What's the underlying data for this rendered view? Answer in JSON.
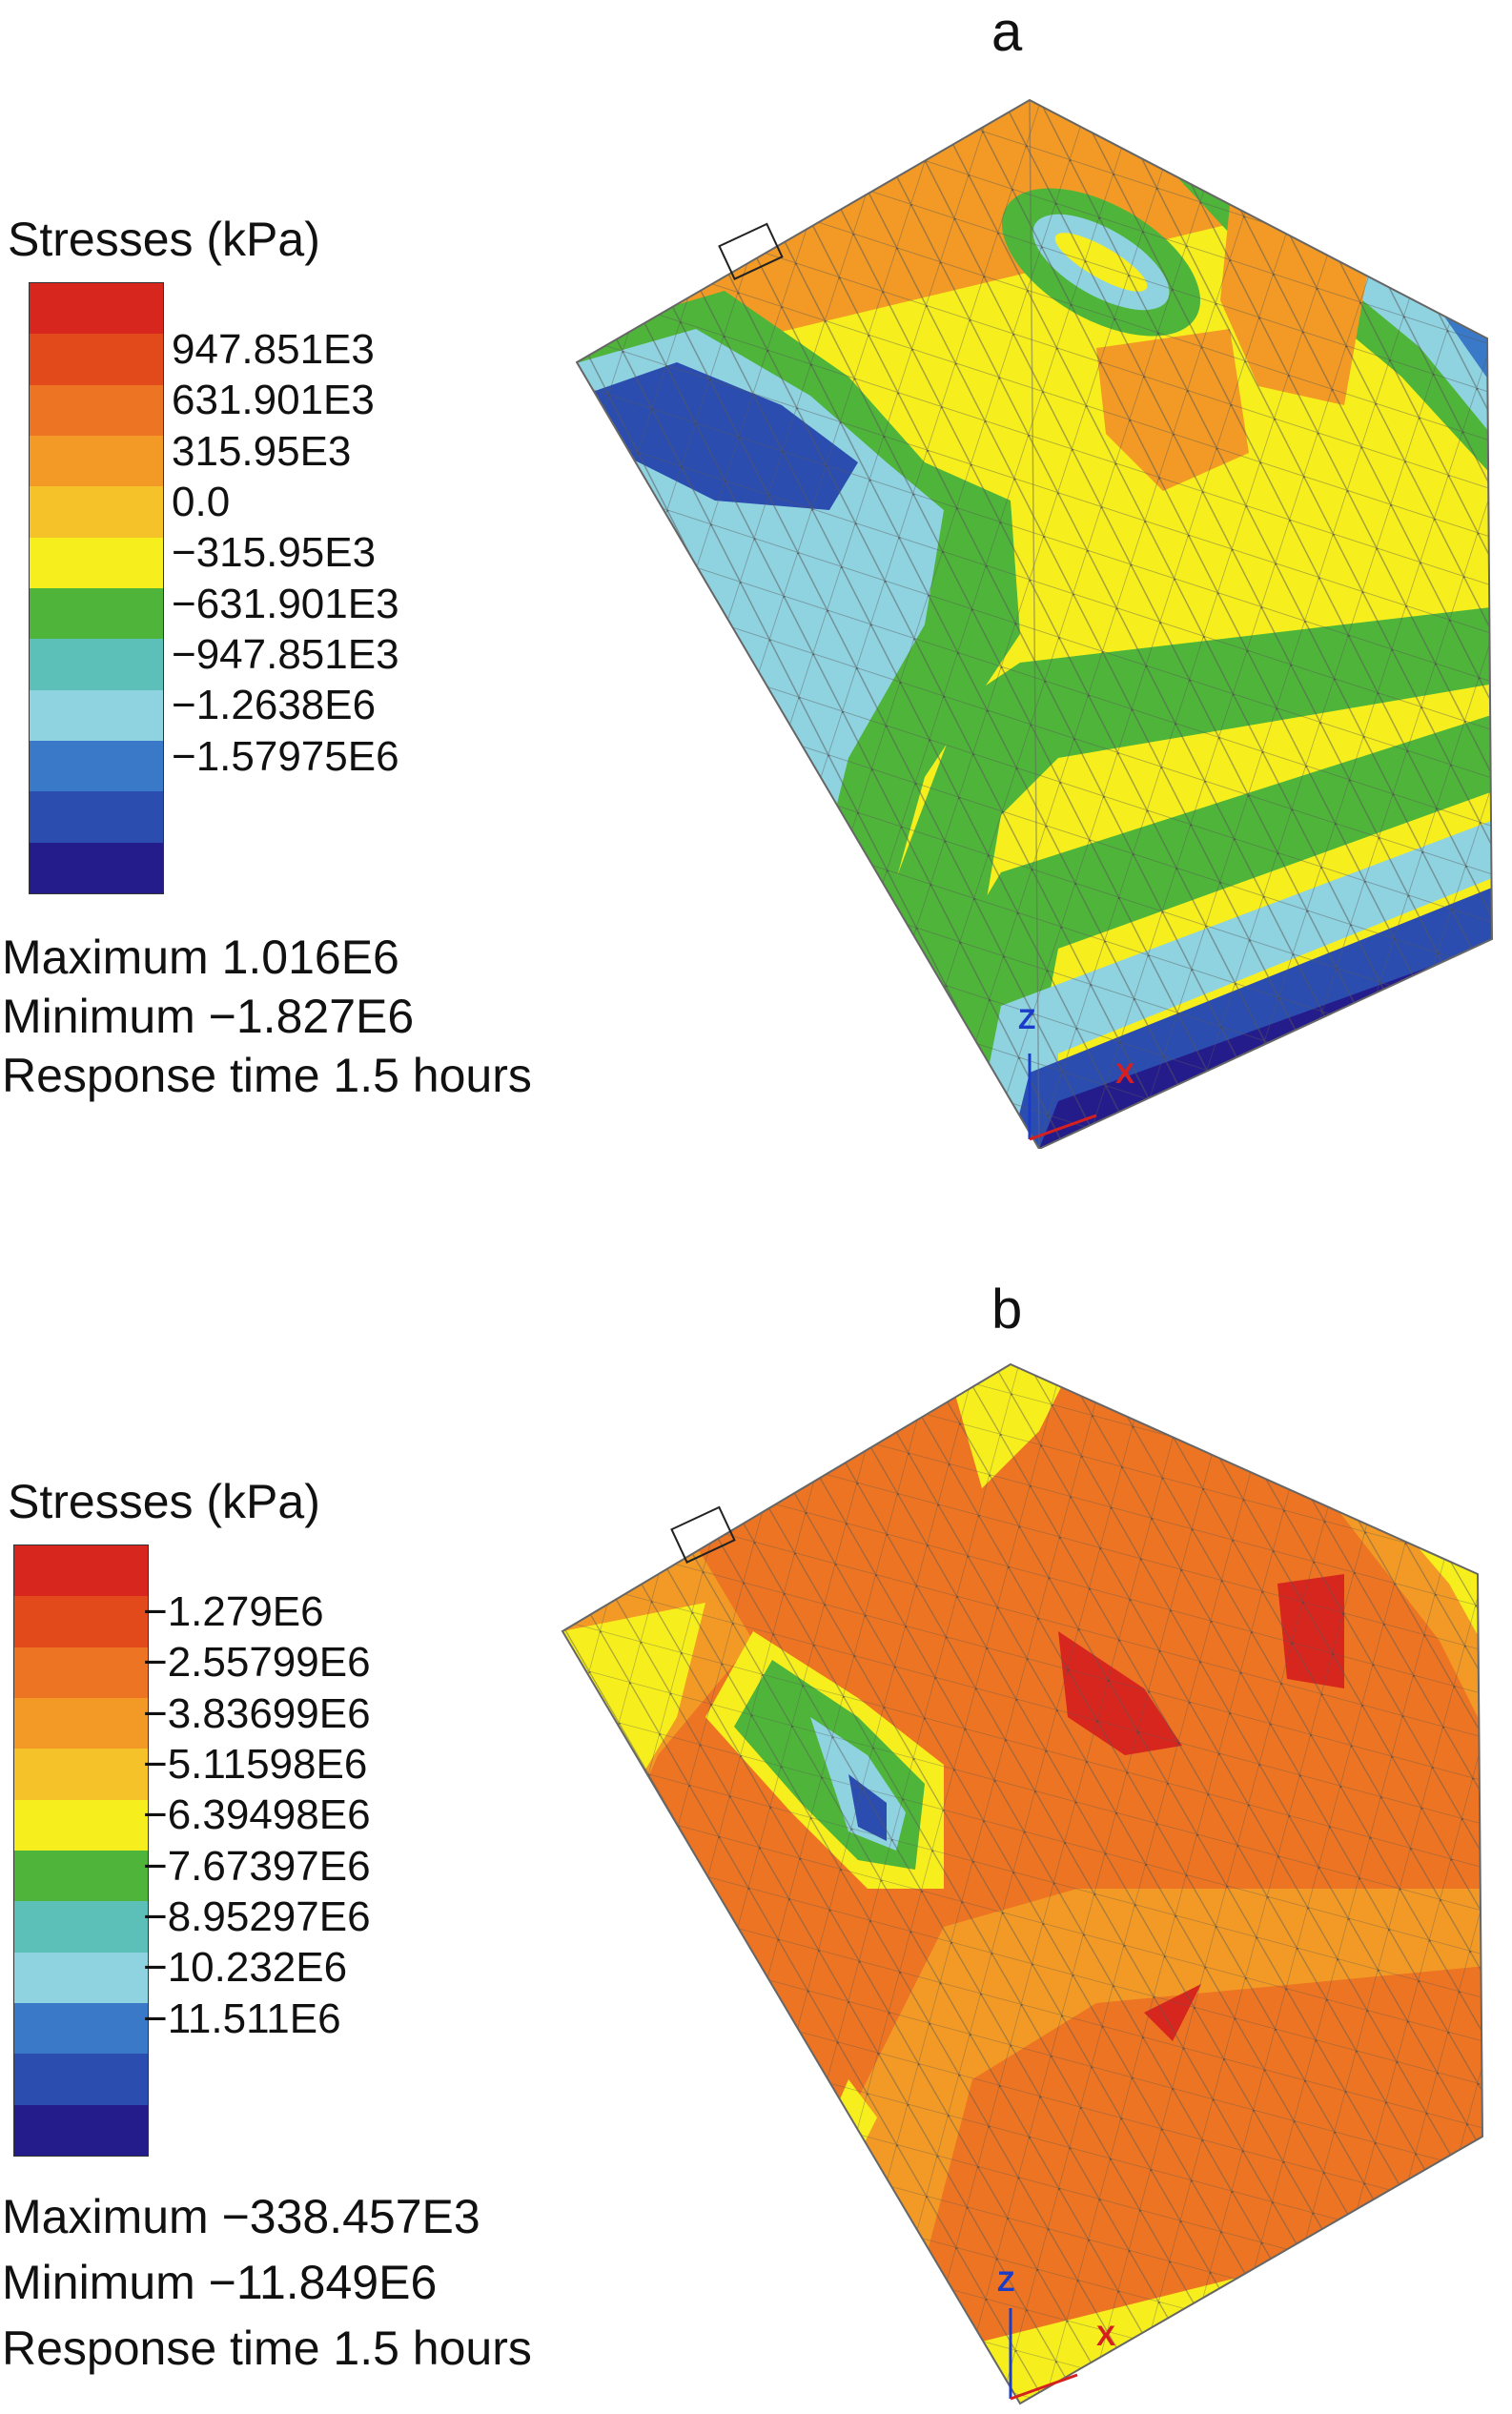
{
  "panels": [
    {
      "letter": "a",
      "legend": {
        "title": "Stresses (kPa)",
        "ticks": [
          "947.851E3",
          "631.901E3",
          "315.95E3",
          "0.0",
          "−315.95E3",
          "−631.901E3",
          "−947.851E3",
          "−1.2638E6",
          "−1.57975E6"
        ],
        "colors": [
          "#d7261e",
          "#e24a1c",
          "#ec7422",
          "#f29a25",
          "#f6c22a",
          "#f7ef1d",
          "#4fb43a",
          "#5cc0b8",
          "#8fd2e0",
          "#3a78c8",
          "#2b4db0",
          "#251c8c"
        ]
      },
      "stats": {
        "maximum": "Maximum 1.016E6",
        "minimum": "Minimum −1.827E6",
        "response": "Response time 1.5 hours"
      },
      "axis_z": "Z",
      "axis_x": "X"
    },
    {
      "letter": "b",
      "legend": {
        "title": "Stresses (kPa)",
        "ticks": [
          "−1.279E6",
          "−2.55799E6",
          "−3.83699E6",
          "−5.11598E6",
          "−6.39498E6",
          "−7.67397E6",
          "−8.95297E6",
          "−10.232E6",
          "−11.511E6"
        ],
        "colors": [
          "#d7261e",
          "#e24a1c",
          "#ec7422",
          "#f29a25",
          "#f6c22a",
          "#f7ef1d",
          "#4fb43a",
          "#5cc0b8",
          "#8fd2e0",
          "#3a78c8",
          "#2b4db0",
          "#251c8c"
        ]
      },
      "stats": {
        "maximum": "Maximum −338.457E3",
        "minimum": "Minimum −11.849E6",
        "response": "Response time 1.5 hours"
      },
      "axis_z": "Z",
      "axis_x": "X"
    }
  ]
}
